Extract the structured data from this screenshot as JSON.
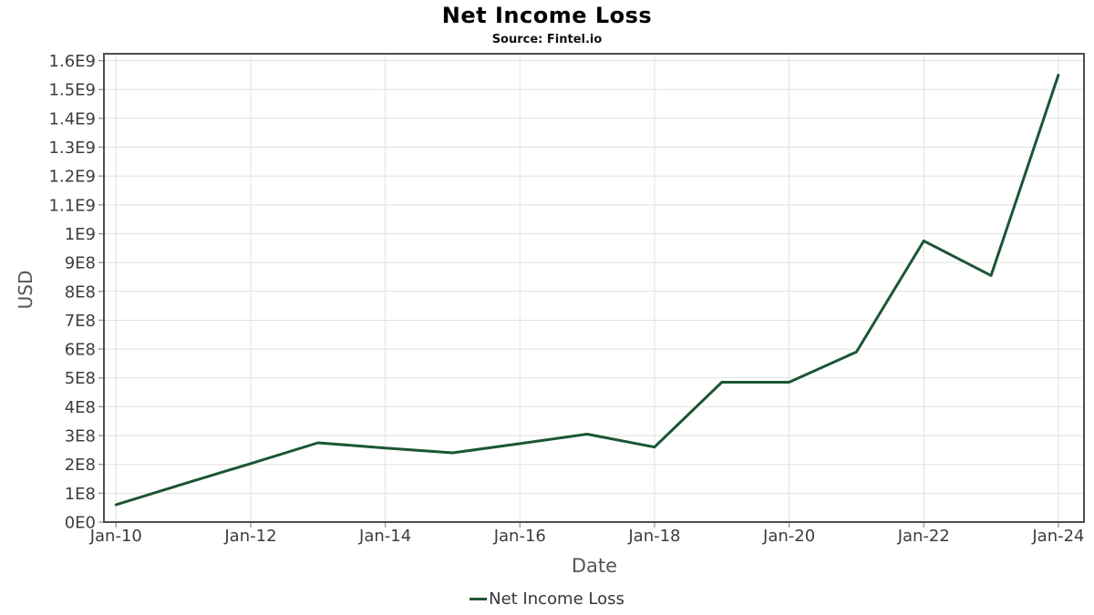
{
  "header": {
    "title": "Net Income Loss",
    "subtitle": "Source: Fintel.io"
  },
  "colors": {
    "line": "#1b5634",
    "grid": "#e1e1e1",
    "plot_border": "#4d4d4d",
    "tick_mark": "#999999",
    "tick_label": "#3d3d3d",
    "axis_title": "#555555",
    "legend_text": "#33373d",
    "background": "#ffffff"
  },
  "chart_data": {
    "type": "line",
    "title": "Net Income Loss",
    "subtitle": "Source: Fintel.io",
    "xlabel": "Date",
    "ylabel": "USD",
    "grid": true,
    "legend_position": "bottom-center",
    "ylim": [
      0,
      1624000000
    ],
    "xlim_years": [
      2009.82,
      2024.38
    ],
    "x_ticks": [
      {
        "year": 2010,
        "label": "Jan-10"
      },
      {
        "year": 2012,
        "label": "Jan-12"
      },
      {
        "year": 2014,
        "label": "Jan-14"
      },
      {
        "year": 2016,
        "label": "Jan-16"
      },
      {
        "year": 2018,
        "label": "Jan-18"
      },
      {
        "year": 2020,
        "label": "Jan-20"
      },
      {
        "year": 2022,
        "label": "Jan-22"
      },
      {
        "year": 2024,
        "label": "Jan-24"
      }
    ],
    "y_ticks": [
      {
        "value": 0,
        "label": "0E0"
      },
      {
        "value": 100000000,
        "label": "1E8"
      },
      {
        "value": 200000000,
        "label": "2E8"
      },
      {
        "value": 300000000,
        "label": "3E8"
      },
      {
        "value": 400000000,
        "label": "4E8"
      },
      {
        "value": 500000000,
        "label": "5E8"
      },
      {
        "value": 600000000,
        "label": "6E8"
      },
      {
        "value": 700000000,
        "label": "7E8"
      },
      {
        "value": 800000000,
        "label": "8E8"
      },
      {
        "value": 900000000,
        "label": "9E8"
      },
      {
        "value": 1000000000,
        "label": "1E9"
      },
      {
        "value": 1100000000,
        "label": "1.1E9"
      },
      {
        "value": 1200000000,
        "label": "1.2E9"
      },
      {
        "value": 1300000000,
        "label": "1.3E9"
      },
      {
        "value": 1400000000,
        "label": "1.4E9"
      },
      {
        "value": 1500000000,
        "label": "1.5E9"
      },
      {
        "value": 1600000000,
        "label": "1.6E9"
      }
    ],
    "series": [
      {
        "name": "Net Income Loss",
        "color": "#1b5634",
        "points": [
          {
            "year": 2010,
            "value": 60000000
          },
          {
            "year": 2011,
            "value": 132000000
          },
          {
            "year": 2012,
            "value": 203000000
          },
          {
            "year": 2013,
            "value": 275000000
          },
          {
            "year": 2014,
            "value": 257000000
          },
          {
            "year": 2015,
            "value": 240000000
          },
          {
            "year": 2016,
            "value": 272000000
          },
          {
            "year": 2017,
            "value": 305000000
          },
          {
            "year": 2018,
            "value": 260000000
          },
          {
            "year": 2019,
            "value": 485000000
          },
          {
            "year": 2020,
            "value": 485000000
          },
          {
            "year": 2021,
            "value": 590000000
          },
          {
            "year": 2022,
            "value": 975000000
          },
          {
            "year": 2023,
            "value": 855000000
          },
          {
            "year": 2024,
            "value": 1550000000
          }
        ]
      }
    ]
  }
}
